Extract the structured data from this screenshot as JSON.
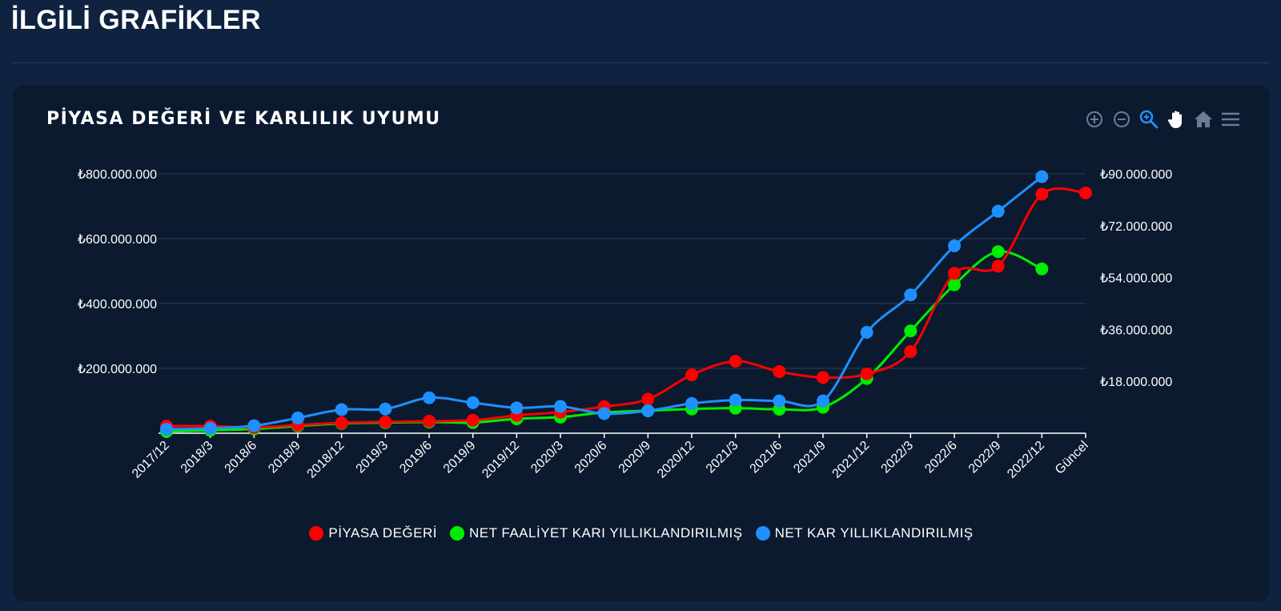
{
  "page": {
    "section_title": "İLGİLİ GRAFİKLER"
  },
  "toolbar": {
    "icons": [
      "zoom-in-icon",
      "zoom-out-icon",
      "selection-zoom-icon",
      "pan-hand-icon",
      "home-reset-icon",
      "menu-icon"
    ]
  },
  "colors": {
    "background": "#0f2240",
    "card": "#0b1a2f",
    "grid": "#2c3e58",
    "active_tool": "#1e90ff",
    "tool": "#6b7d96"
  },
  "chart_data": {
    "type": "line",
    "title": "PİYASA DEĞERİ VE KARLILIK UYUMU",
    "categories": [
      "2017/12",
      "2018/3",
      "2018/6",
      "2018/9",
      "2018/12",
      "2019/3",
      "2019/6",
      "2019/9",
      "2019/12",
      "2020/3",
      "2020/6",
      "2020/9",
      "2020/12",
      "2021/3",
      "2021/6",
      "2021/9",
      "2021/12",
      "2022/3",
      "2022/6",
      "2022/9",
      "2022/12",
      "Güncel"
    ],
    "left_axis": {
      "ticks": [
        "₺200.000.000",
        "₺400.000.000",
        "₺600.000.000",
        "₺800.000.000"
      ],
      "tick_values": [
        200000000,
        400000000,
        600000000,
        800000000
      ],
      "ylim": [
        0,
        800000000
      ]
    },
    "right_axis": {
      "ticks": [
        "₺18.000.000",
        "₺36.000.000",
        "₺54.000.000",
        "₺72.000.000",
        "₺90.000.000"
      ],
      "tick_values": [
        18000000,
        36000000,
        54000000,
        72000000,
        90000000
      ],
      "ylim": [
        0,
        90000000
      ]
    },
    "grid": true,
    "legend_position": "bottom-center",
    "series": [
      {
        "name": "PİYASA DEĞERİ",
        "color": "#ff0000",
        "axis": "left",
        "values": [
          22000000,
          22000000,
          18000000,
          25000000,
          32000000,
          35000000,
          37000000,
          40000000,
          55000000,
          65000000,
          82000000,
          105000000,
          180000000,
          222000000,
          190000000,
          172000000,
          183000000,
          252000000,
          493000000,
          515000000,
          737000000,
          741000000
        ]
      },
      {
        "name": "NET FAALİYET KARI YILLIKLANDIRILMIŞ",
        "color": "#00ee00",
        "axis": "right",
        "values": [
          600000,
          1000000,
          1500000,
          2500000,
          3400000,
          3700000,
          3900000,
          3700000,
          5000000,
          5600000,
          7200000,
          7800000,
          8400000,
          8700000,
          8300000,
          9000000,
          19000000,
          35500000,
          51500000,
          63000000,
          57000000,
          null
        ]
      },
      {
        "name": "NET KAR YILLIKLANDIRILMIŞ",
        "color": "#1e90ff",
        "axis": "right",
        "values": [
          1400000,
          1700000,
          2600000,
          5300000,
          8200000,
          8400000,
          12300000,
          10600000,
          8800000,
          9300000,
          6800000,
          7800000,
          10300000,
          11500000,
          11200000,
          11200000,
          35000000,
          48000000,
          65000000,
          77000000,
          89000000,
          null
        ]
      }
    ]
  }
}
